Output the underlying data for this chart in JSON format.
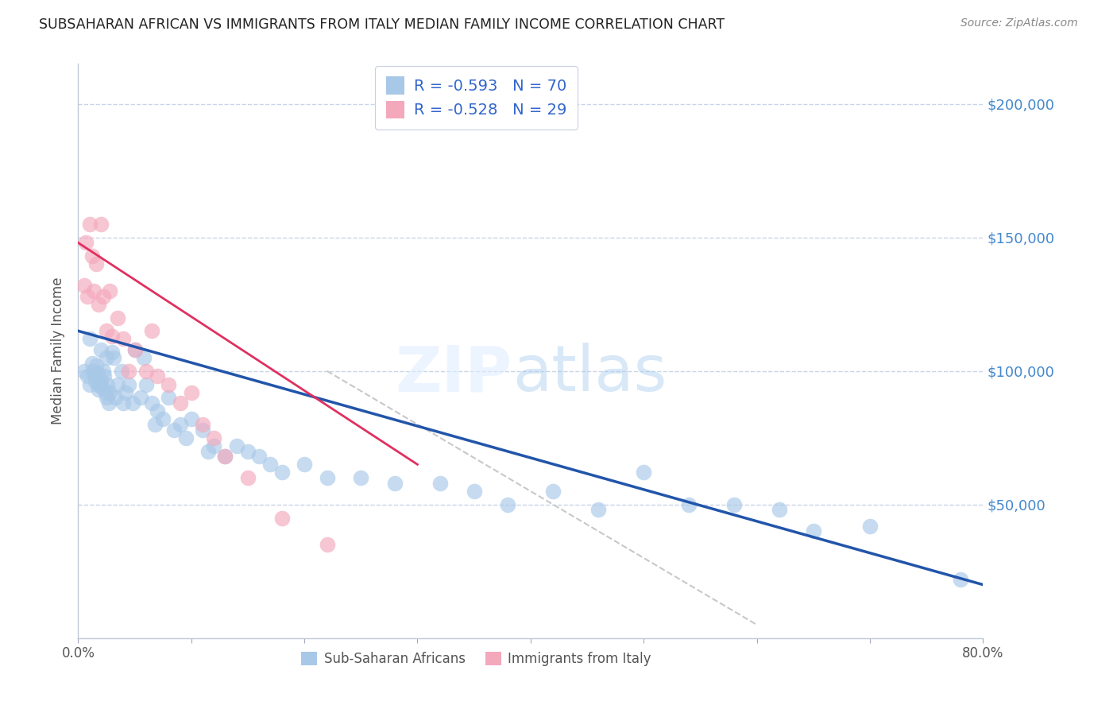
{
  "title": "SUBSAHARAN AFRICAN VS IMMIGRANTS FROM ITALY MEDIAN FAMILY INCOME CORRELATION CHART",
  "source": "Source: ZipAtlas.com",
  "ylabel": "Median Family Income",
  "xlim": [
    0.0,
    0.8
  ],
  "ylim": [
    0,
    215000
  ],
  "yticks": [
    0,
    50000,
    100000,
    150000,
    200000
  ],
  "xticks": [
    0.0,
    0.1,
    0.2,
    0.3,
    0.4,
    0.5,
    0.6,
    0.7,
    0.8
  ],
  "blue_r": "-0.593",
  "blue_n": "70",
  "pink_r": "-0.528",
  "pink_n": "29",
  "blue_color": "#a8c8e8",
  "pink_color": "#f4a8bc",
  "blue_line_color": "#2255aa",
  "pink_line_color": "#e03060",
  "gray_line_color": "#c8c8c8",
  "legend_label_blue": "Sub-Saharan Africans",
  "legend_label_pink": "Immigrants from Italy",
  "title_color": "#222222",
  "source_color": "#888888",
  "right_tick_color": "#4488cc",
  "grid_color": "#c8d4e8",
  "text_color": "#333333",
  "value_color": "#3366cc",
  "blue_x": [
    0.005,
    0.008,
    0.01,
    0.01,
    0.012,
    0.013,
    0.015,
    0.015,
    0.016,
    0.017,
    0.018,
    0.018,
    0.02,
    0.02,
    0.021,
    0.022,
    0.023,
    0.024,
    0.025,
    0.025,
    0.026,
    0.027,
    0.028,
    0.03,
    0.031,
    0.033,
    0.035,
    0.038,
    0.04,
    0.042,
    0.045,
    0.048,
    0.05,
    0.055,
    0.058,
    0.06,
    0.065,
    0.068,
    0.07,
    0.075,
    0.08,
    0.085,
    0.09,
    0.095,
    0.1,
    0.11,
    0.115,
    0.12,
    0.13,
    0.14,
    0.15,
    0.16,
    0.17,
    0.18,
    0.2,
    0.22,
    0.25,
    0.28,
    0.32,
    0.35,
    0.38,
    0.42,
    0.46,
    0.5,
    0.54,
    0.58,
    0.62,
    0.65,
    0.7,
    0.78
  ],
  "blue_y": [
    100000,
    98000,
    112000,
    95000,
    103000,
    100000,
    98000,
    96000,
    102000,
    99000,
    95000,
    93000,
    108000,
    96000,
    94000,
    100000,
    98000,
    92000,
    105000,
    90000,
    95000,
    88000,
    92000,
    107000,
    105000,
    90000,
    95000,
    100000,
    88000,
    92000,
    95000,
    88000,
    108000,
    90000,
    105000,
    95000,
    88000,
    80000,
    85000,
    82000,
    90000,
    78000,
    80000,
    75000,
    82000,
    78000,
    70000,
    72000,
    68000,
    72000,
    70000,
    68000,
    65000,
    62000,
    65000,
    60000,
    60000,
    58000,
    58000,
    55000,
    50000,
    55000,
    48000,
    62000,
    50000,
    50000,
    48000,
    40000,
    42000,
    22000
  ],
  "pink_x": [
    0.005,
    0.007,
    0.008,
    0.01,
    0.012,
    0.014,
    0.016,
    0.018,
    0.02,
    0.022,
    0.025,
    0.028,
    0.03,
    0.035,
    0.04,
    0.045,
    0.05,
    0.06,
    0.065,
    0.07,
    0.08,
    0.09,
    0.1,
    0.11,
    0.12,
    0.13,
    0.15,
    0.18,
    0.22
  ],
  "pink_y": [
    132000,
    148000,
    128000,
    155000,
    143000,
    130000,
    140000,
    125000,
    155000,
    128000,
    115000,
    130000,
    113000,
    120000,
    112000,
    100000,
    108000,
    100000,
    115000,
    98000,
    95000,
    88000,
    92000,
    80000,
    75000,
    68000,
    60000,
    45000,
    35000
  ],
  "blue_trend_x": [
    0.0,
    0.8
  ],
  "blue_trend_y": [
    115000,
    20000
  ],
  "pink_trend_x": [
    0.0,
    0.3
  ],
  "pink_trend_y": [
    148000,
    65000
  ],
  "gray_trend_x": [
    0.22,
    0.6
  ],
  "gray_trend_y": [
    100000,
    5000
  ]
}
